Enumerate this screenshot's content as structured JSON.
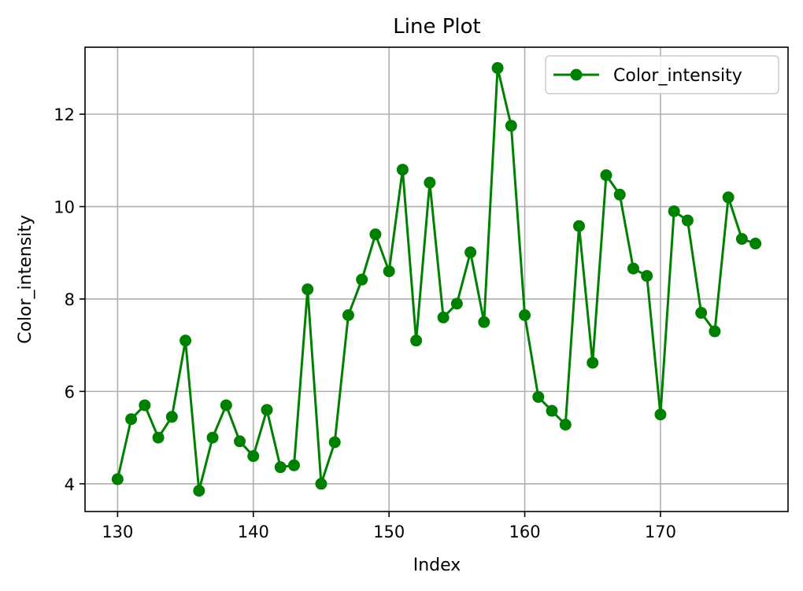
{
  "chart_data": {
    "type": "line",
    "title": "Line Plot",
    "xlabel": "Index",
    "ylabel": "Color_intensity",
    "xlim": [
      127.6,
      179.4
    ],
    "ylim": [
      3.4,
      13.45
    ],
    "xticks": [
      130,
      140,
      150,
      160,
      170
    ],
    "yticks": [
      4,
      6,
      8,
      10,
      12
    ],
    "grid": true,
    "legend_position": "top-right",
    "x": [
      130,
      131,
      132,
      133,
      134,
      135,
      136,
      137,
      138,
      139,
      140,
      141,
      142,
      143,
      144,
      145,
      146,
      147,
      148,
      149,
      150,
      151,
      152,
      153,
      154,
      155,
      156,
      157,
      158,
      159,
      160,
      161,
      162,
      163,
      164,
      165,
      166,
      167,
      168,
      169,
      170,
      171,
      172,
      173,
      174,
      175,
      176,
      177
    ],
    "series": [
      {
        "name": "Color_intensity",
        "color": "#008000",
        "marker": "circle",
        "values": [
          4.1,
          5.4,
          5.7,
          5.0,
          5.45,
          7.1,
          3.85,
          5.0,
          5.7,
          4.92,
          4.6,
          5.6,
          4.36,
          4.4,
          8.21,
          4.0,
          4.9,
          7.65,
          8.42,
          9.4,
          8.6,
          10.8,
          7.1,
          10.52,
          7.6,
          7.9,
          9.01,
          7.5,
          13.0,
          11.75,
          7.65,
          5.88,
          5.58,
          5.28,
          9.58,
          6.62,
          10.68,
          10.26,
          8.66,
          8.5,
          5.5,
          9.899,
          9.7,
          7.7,
          7.3,
          10.2,
          9.3,
          9.2
        ]
      }
    ]
  }
}
